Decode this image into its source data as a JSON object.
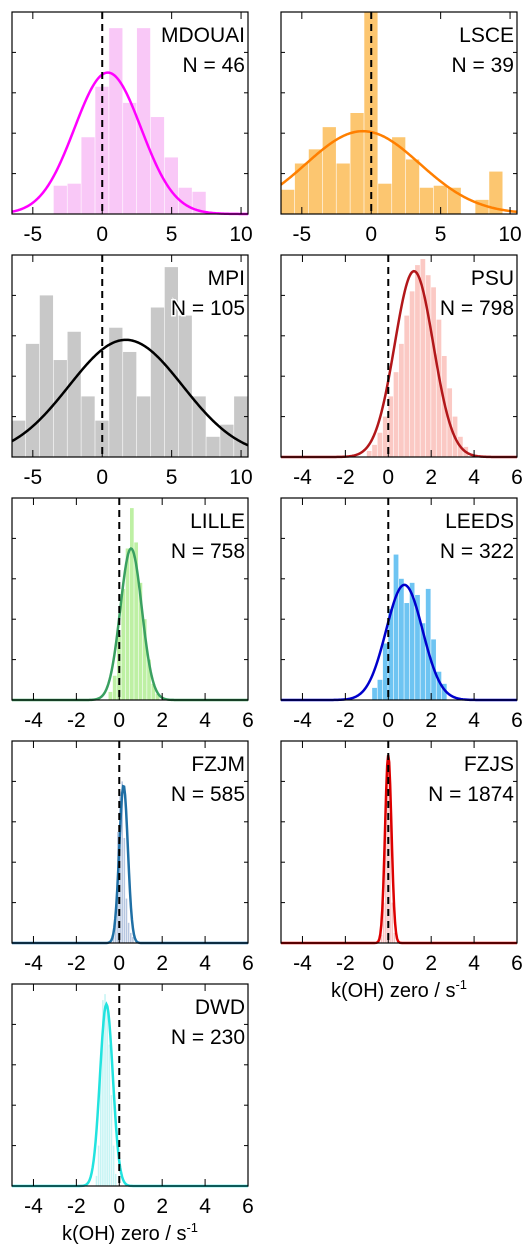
{
  "xlabel_main": "k(OH) zero / s",
  "xlabel_sup": "-1",
  "chart_data": [
    {
      "type": "bar",
      "title": "MDOUAI",
      "count_label": "N = 46",
      "color": "#ff00ff",
      "fill": "#f9c8f7",
      "xlim": [
        -6.5,
        10.5
      ],
      "ticks": [
        "-5",
        "0",
        "5",
        "10"
      ],
      "tick_values": [
        -5,
        0,
        5,
        10
      ],
      "bin_start": -3.5,
      "bin_width": 1,
      "values": [
        0.14,
        0.15,
        0.38,
        0.63,
        0.92,
        0.55,
        0.92,
        0.48,
        0.28,
        0.13,
        0.11
      ],
      "gaussian": {
        "mu": 0.4,
        "sigma": 2.4,
        "peak": 0.7
      },
      "show_xlabel": false
    },
    {
      "type": "bar",
      "title": "LSCE",
      "count_label": "N = 39",
      "color": "#ff7f00",
      "fill": "#fcc670",
      "xlim": [
        -6.5,
        10.5
      ],
      "ticks": [
        "-5",
        "0",
        "5",
        "10"
      ],
      "tick_values": [
        -5,
        0,
        5,
        10
      ],
      "bin_start": -6.5,
      "bin_width": 1,
      "values": [
        0.12,
        0.25,
        0.32,
        0.43,
        0.25,
        0.5,
        1.0,
        0.15,
        0.38,
        0.27,
        0.13,
        0.14,
        0.13,
        0,
        0.07,
        0.21,
        0
      ],
      "gaussian": {
        "mu": -0.6,
        "sigma": 4.1,
        "peak": 0.41
      },
      "show_xlabel": false
    },
    {
      "type": "bar",
      "title": "MPI",
      "count_label": "N = 105",
      "color": "#000000",
      "fill": "#c8c8c8",
      "xlim": [
        -6.5,
        10.5
      ],
      "ticks": [
        "-5",
        "0",
        "5",
        "10"
      ],
      "tick_values": [
        -5,
        0,
        5,
        10
      ],
      "bin_start": -6.5,
      "bin_width": 1,
      "values": [
        0.18,
        0.56,
        0.8,
        0.48,
        0.62,
        0.3,
        0.18,
        0.64,
        0.52,
        0.3,
        0.74,
        0.94,
        0.7,
        0.3,
        0.1,
        0.16,
        0.3
      ],
      "gaussian": {
        "mu": 1.7,
        "sigma": 4.1,
        "peak": 0.58
      },
      "show_xlabel": false
    },
    {
      "type": "bar",
      "title": "PSU",
      "count_label": "N = 798",
      "color": "#b2171a",
      "fill": "#fbc9c4",
      "xlim": [
        -5,
        6
      ],
      "ticks": [
        "-4",
        "-2",
        "0",
        "2",
        "4"
      ],
      "tick_values": [
        -4,
        -2,
        0,
        2,
        4
      ],
      "tick_end_label": "6",
      "bin_start": -1.0,
      "bin_width": 0.25,
      "values": [
        0.03,
        0.06,
        0.12,
        0.2,
        0.3,
        0.42,
        0.56,
        0.7,
        0.82,
        0.95,
        0.98,
        0.9,
        0.84,
        0.68,
        0.5,
        0.34,
        0.2,
        0.1,
        0.05
      ],
      "gaussian": {
        "mu": 1.2,
        "sigma": 0.9,
        "peak": 0.92
      },
      "show_xlabel": false
    },
    {
      "type": "bar",
      "title": "LILLE",
      "count_label": "N = 758",
      "color": "#3aa061",
      "fill": "#bef0a4",
      "xlim": [
        -5,
        6
      ],
      "ticks": [
        "-4",
        "-2",
        "0",
        "2",
        "4"
      ],
      "tick_values": [
        -4,
        -2,
        0,
        2,
        4
      ],
      "tick_end_label": "6",
      "bin_start": -0.5,
      "bin_width": 0.2,
      "values": [
        0.04,
        0.12,
        0.32,
        0.55,
        0.75,
        0.95,
        0.78,
        0.58,
        0.4,
        0.2,
        0.08,
        0.03
      ],
      "gaussian": {
        "mu": 0.55,
        "sigma": 0.5,
        "peak": 0.75
      },
      "show_xlabel": false
    },
    {
      "type": "bar",
      "title": "LEEDS",
      "count_label": "N = 322",
      "color": "#0000cc",
      "fill": "#6ec4f2",
      "xlim": [
        -5,
        6
      ],
      "ticks": [
        "-4",
        "-2",
        "0",
        "2",
        "4"
      ],
      "tick_values": [
        -4,
        -2,
        0,
        2,
        4
      ],
      "tick_end_label": "6",
      "bin_start": -0.75,
      "bin_width": 0.25,
      "values": [
        0.06,
        0.1,
        0.28,
        0.45,
        0.72,
        0.6,
        0.48,
        0.58,
        0.52,
        0.38,
        0.55,
        0.3,
        0.14,
        0.08
      ],
      "gaussian": {
        "mu": 0.75,
        "sigma": 0.85,
        "peak": 0.57
      },
      "show_xlabel": false
    },
    {
      "type": "bar",
      "title": "FZJM",
      "count_label": "N = 585",
      "color": "#1f6fa5",
      "fill": "#b6c6e0",
      "xlim": [
        -5,
        6
      ],
      "ticks": [
        "-4",
        "-2",
        "0",
        "2",
        "4"
      ],
      "tick_values": [
        -4,
        -2,
        0,
        2,
        4
      ],
      "tick_end_label": "6",
      "bin_start": -0.3,
      "bin_width": 0.1,
      "values": [
        0.04,
        0.18,
        0.55,
        0.75,
        0.8,
        0.52,
        0.22,
        0.1,
        0.05,
        0.03
      ],
      "gaussian": {
        "mu": 0.2,
        "sigma": 0.2,
        "peak": 0.78
      },
      "show_xlabel": false
    },
    {
      "type": "bar",
      "title": "FZJS",
      "count_label": "N = 1874",
      "color": "#dd0000",
      "fill": "#f7c2c2",
      "xlim": [
        -5,
        6
      ],
      "ticks": [
        "-4",
        "-2",
        "0",
        "2",
        "4"
      ],
      "tick_values": [
        -4,
        -2,
        0,
        2,
        4
      ],
      "tick_end_label": "6",
      "bin_start": -0.35,
      "bin_width": 0.1,
      "values": [
        0.04,
        0.2,
        0.62,
        0.92,
        0.62,
        0.2,
        0.05
      ],
      "gaussian": {
        "mu": 0.0,
        "sigma": 0.15,
        "peak": 0.93
      },
      "show_xlabel": true
    },
    {
      "type": "bar",
      "title": "DWD",
      "count_label": "N = 230",
      "color": "#22e3df",
      "fill": "#c6f4f4",
      "xlim": [
        -5,
        6
      ],
      "ticks": [
        "-4",
        "-2",
        "0",
        "2",
        "4"
      ],
      "tick_values": [
        -4,
        -2,
        0,
        2,
        4
      ],
      "tick_end_label": "6",
      "bin_start": -1.1,
      "bin_width": 0.1,
      "values": [
        0.05,
        0.2,
        0.58,
        0.92,
        0.95,
        0.9,
        0.7,
        0.45,
        0.2,
        0.06
      ],
      "gaussian": {
        "mu": -0.6,
        "sigma": 0.3,
        "peak": 0.9
      },
      "show_xlabel": true
    }
  ]
}
